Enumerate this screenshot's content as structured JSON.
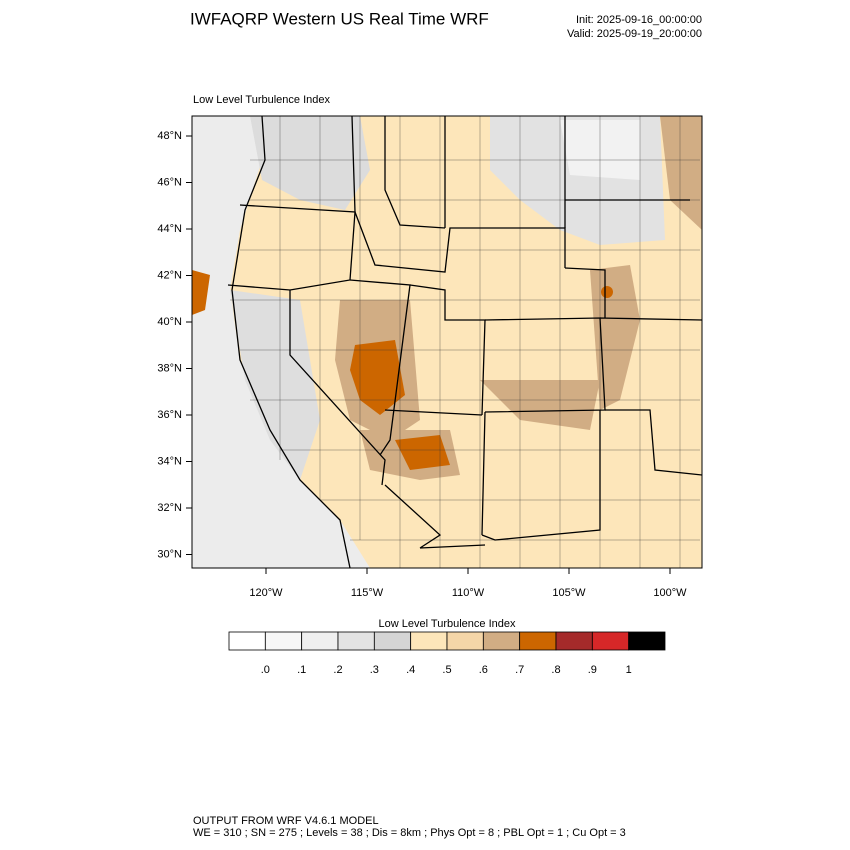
{
  "header": {
    "title": "IWFAQRP Western US Real Time WRF",
    "init": "Init: 2025-09-16_00:00:00",
    "valid": "Valid: 2025-09-19_20:00:00"
  },
  "map": {
    "subtitle": "Low Level Turbulence Index",
    "lat_labels": [
      "48°N",
      "46°N",
      "44°N",
      "42°N",
      "40°N",
      "38°N",
      "36°N",
      "34°N",
      "32°N",
      "30°N"
    ],
    "lon_labels": [
      "120°W",
      "115°W",
      "110°W",
      "105°W",
      "100°W"
    ]
  },
  "colorbar": {
    "title": "Low Level Turbulence Index",
    "labels": [
      ".0",
      ".1",
      ".2",
      ".3",
      ".4",
      ".5",
      ".6",
      ".7",
      ".8",
      ".9",
      "1"
    ],
    "colors": [
      "#ffffff",
      "#f7f7f7",
      "#efefef",
      "#e3e3e3",
      "#d5d5d5",
      "#fde6ba",
      "#f5d6a8",
      "#d1ad84",
      "#cc6600",
      "#a52a2a",
      "#d62728",
      "#000000"
    ]
  },
  "footer": {
    "line1": "OUTPUT FROM WRF V4.6.1 MODEL",
    "line2": "WE = 310 ; SN = 275 ; Levels = 38 ; Dis = 8km ; Phys Opt = 8 ; PBL Opt = 1 ; Cu Opt = 3"
  }
}
